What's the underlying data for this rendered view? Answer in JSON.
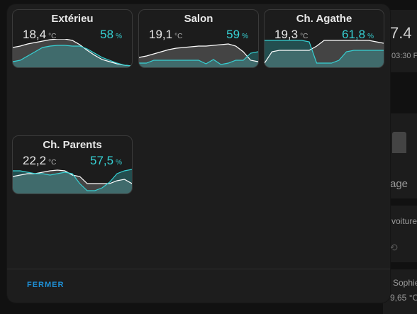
{
  "background": {
    "right_value": "7.4",
    "right_time": "03:30 F",
    "right_label": "age",
    "right_voiture": "voiture",
    "right_sophie": "Sophie",
    "right_temp": "9,65 °C"
  },
  "cards": [
    {
      "title": "Extérieu",
      "temp": "18,4",
      "temp_unit": "°C",
      "hum": "58",
      "hum_unit": "%"
    },
    {
      "title": "Salon",
      "temp": "19,1",
      "temp_unit": "°C",
      "hum": "59",
      "hum_unit": "%"
    },
    {
      "title": "Ch. Agathe",
      "temp": "19,3",
      "temp_unit": "°C",
      "hum": "61,8",
      "hum_unit": "%"
    },
    {
      "title": "Ch. Parents",
      "temp": "22,2",
      "temp_unit": "°C",
      "hum": "57,5",
      "hum_unit": "%"
    }
  ],
  "close_label": "FERMER",
  "colors": {
    "accent": "#1e90d6",
    "humidity": "#36d1d4",
    "temperature_line": "#ffffff"
  },
  "sparklines": [
    {
      "temperature": [
        28,
        30,
        33,
        35,
        37,
        39,
        40,
        40,
        38,
        32,
        24,
        17,
        11,
        8,
        5,
        3,
        2
      ],
      "humidity": [
        8,
        10,
        16,
        22,
        28,
        30,
        31,
        31,
        30,
        30,
        26,
        20,
        14,
        10,
        6,
        3,
        2
      ]
    },
    {
      "temperature": [
        14,
        16,
        19,
        22,
        25,
        27,
        28,
        29,
        30,
        30,
        31,
        32,
        33,
        30,
        22,
        10,
        8
      ],
      "humidity": [
        6,
        6,
        10,
        10,
        10,
        10,
        10,
        10,
        10,
        5,
        11,
        4,
        6,
        10,
        10,
        20,
        22
      ]
    },
    {
      "temperature": [
        6,
        22,
        24,
        24,
        24,
        24,
        24,
        30,
        38,
        38,
        38,
        38,
        38,
        38,
        38,
        36,
        34
      ],
      "humidity": [
        38,
        38,
        38,
        38,
        38,
        38,
        36,
        6,
        6,
        6,
        10,
        22,
        24,
        24,
        24,
        24,
        24
      ]
    },
    {
      "temperature": [
        24,
        26,
        28,
        28,
        30,
        32,
        33,
        32,
        26,
        24,
        14,
        14,
        14,
        14,
        18,
        20,
        14
      ],
      "humidity": [
        32,
        32,
        30,
        28,
        28,
        26,
        28,
        30,
        28,
        14,
        4,
        4,
        8,
        16,
        28,
        32,
        34
      ]
    }
  ]
}
